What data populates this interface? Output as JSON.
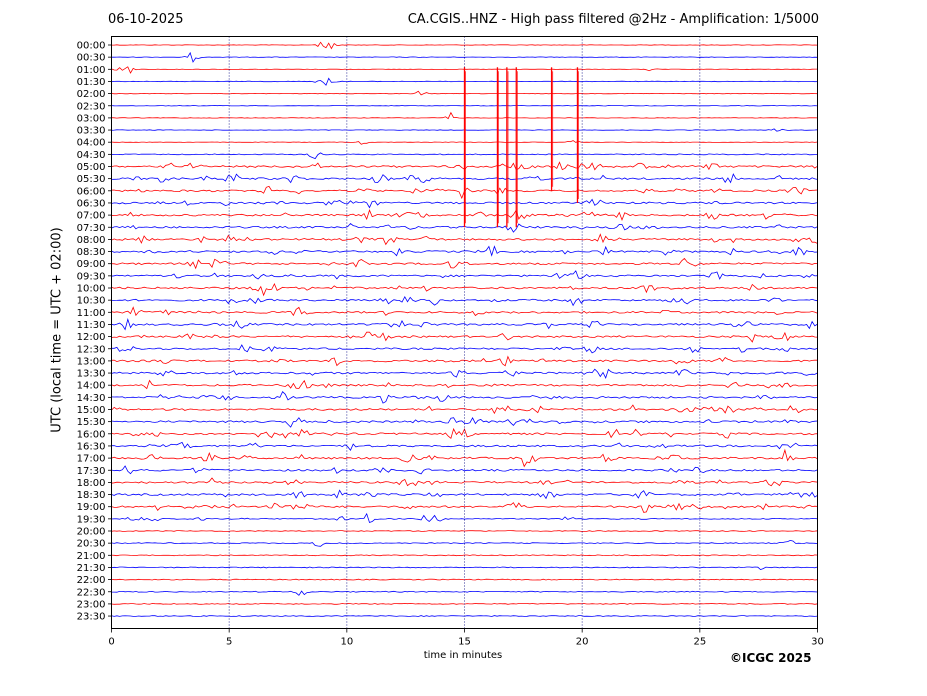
{
  "header": {
    "date": "06-10-2025",
    "title": "CA.CGIS..HNZ - High pass filtered @2Hz - Amplification: 1/5000"
  },
  "footer": {
    "copyright": "©ICGC 2025"
  },
  "chart_data": {
    "type": "line",
    "title": "CA.CGIS..HNZ - High pass filtered @2Hz - Amplification: 1/5000",
    "xlabel": "time in minutes",
    "ylabel": "UTC (local time = UTC + 02:00)",
    "xlim": [
      0,
      30
    ],
    "x_ticks": [
      "0",
      "5",
      "10",
      "15",
      "20",
      "25",
      "30"
    ],
    "x_tick_values": [
      0,
      5,
      10,
      15,
      20,
      25,
      30
    ],
    "vertical_gridlines": [
      5,
      10,
      15,
      20,
      25
    ],
    "rows": [
      "00:00",
      "00:30",
      "01:00",
      "01:30",
      "02:00",
      "02:30",
      "03:00",
      "03:30",
      "04:00",
      "04:30",
      "05:00",
      "05:30",
      "06:00",
      "06:30",
      "07:00",
      "07:30",
      "08:00",
      "08:30",
      "09:00",
      "09:30",
      "10:00",
      "10:30",
      "11:00",
      "11:30",
      "12:00",
      "12:30",
      "13:00",
      "13:30",
      "14:00",
      "14:30",
      "15:00",
      "15:30",
      "16:00",
      "16:30",
      "17:00",
      "17:30",
      "18:00",
      "18:30",
      "19:00",
      "19:30",
      "20:00",
      "20:30",
      "21:00",
      "21:30",
      "22:00",
      "22:30",
      "23:00",
      "23:30"
    ],
    "series_colors": [
      "#ff0000",
      "#0000ff"
    ],
    "color_pattern": "alternating red / blue per row",
    "large_spikes": [
      {
        "row": "01:00",
        "minute": 15.0,
        "extends_to_row": "07:30"
      },
      {
        "row": "01:00",
        "minute": 16.4,
        "extends_to_row": "07:30"
      },
      {
        "row": "01:00",
        "minute": 16.8,
        "extends_to_row": "07:30"
      },
      {
        "row": "01:00",
        "minute": 17.2,
        "extends_to_row": "07:30"
      },
      {
        "row": "01:00",
        "minute": 18.7,
        "extends_to_row": "06:00"
      },
      {
        "row": "01:00",
        "minute": 19.8,
        "extends_to_row": "06:30"
      }
    ]
  }
}
